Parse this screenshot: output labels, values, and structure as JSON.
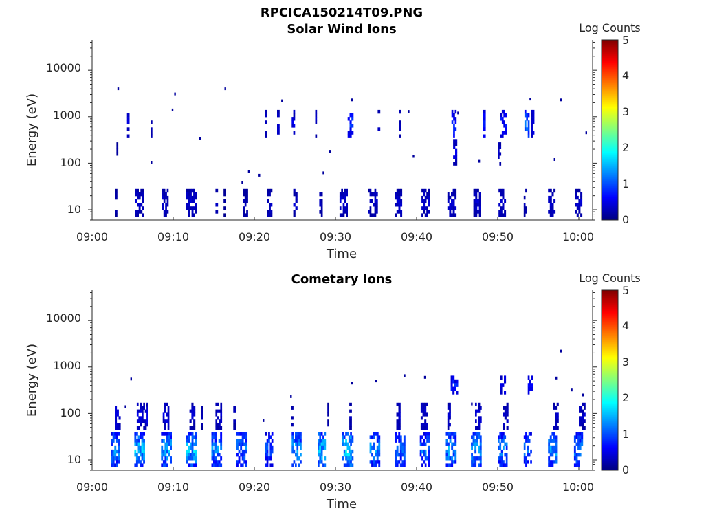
{
  "figure_title": "RPCICA150214T09.PNG",
  "colors": {
    "axis": "#262626",
    "background": "#ffffff"
  },
  "colormap": "jet",
  "chart_data": [
    {
      "type": "heatmap",
      "title": "Solar Wind Ions",
      "xlabel": "Time",
      "ylabel": "Energy (eV)",
      "x_ticks": [
        "09:00",
        "09:10",
        "09:20",
        "09:30",
        "09:40",
        "09:50",
        "10:00"
      ],
      "xlim_minutes": [
        0,
        61.5
      ],
      "y_scale": "log",
      "y_ticks": [
        "10",
        "100",
        "1000",
        "10000"
      ],
      "ylim": [
        6,
        45000
      ],
      "colorbar": {
        "label": "Log Counts",
        "ticks": [
          "0",
          "1",
          "2",
          "3",
          "4",
          "5"
        ],
        "range": [
          0,
          5
        ]
      },
      "bands": [
        {
          "e_lo": 7,
          "e_hi": 28,
          "runs": [
            [
              2.8,
              3.1,
              0.3
            ],
            [
              5.3,
              6.4,
              0.4
            ],
            [
              8.6,
              9.4,
              0.4
            ],
            [
              11.6,
              12.9,
              0.4
            ],
            [
              15.2,
              15.5,
              0.3
            ],
            [
              16.2,
              16.5,
              0.2
            ],
            [
              18.6,
              19.2,
              0.3
            ],
            [
              21.6,
              22.2,
              0.4
            ],
            [
              24.8,
              25.3,
              0.4
            ],
            [
              28.0,
              28.4,
              0.3
            ],
            [
              30.5,
              31.5,
              0.4
            ],
            [
              34.0,
              35.2,
              0.4
            ],
            [
              37.3,
              38.2,
              0.4
            ],
            [
              40.6,
              41.6,
              0.4
            ],
            [
              43.8,
              44.9,
              0.4
            ],
            [
              47.0,
              47.9,
              0.4
            ],
            [
              50.1,
              51.0,
              0.4
            ],
            [
              53.2,
              53.6,
              0.3
            ],
            [
              56.2,
              57.1,
              0.4
            ],
            [
              59.5,
              60.4,
              0.4
            ]
          ]
        },
        {
          "e_lo": 350,
          "e_hi": 1400,
          "runs": [
            [
              4.3,
              4.6,
              0.5
            ],
            [
              7.2,
              7.4,
              0.4
            ],
            [
              21.3,
              21.5,
              0.4
            ],
            [
              22.8,
              23.1,
              0.4
            ],
            [
              24.6,
              25.0,
              0.5
            ],
            [
              27.5,
              27.7,
              0.4
            ],
            [
              31.5,
              32.2,
              0.9
            ],
            [
              35.2,
              35.5,
              0.5
            ],
            [
              37.8,
              38.1,
              0.4
            ],
            [
              44.3,
              44.9,
              0.9
            ],
            [
              48.2,
              48.5,
              1.0
            ],
            [
              50.3,
              51.1,
              0.8
            ],
            [
              53.3,
              53.9,
              1.3
            ],
            [
              54.1,
              54.5,
              0.6
            ]
          ]
        },
        {
          "e_lo": 90,
          "e_hi": 330,
          "runs": [
            [
              44.5,
              45.0,
              0.6
            ],
            [
              50.0,
              50.4,
              0.4
            ],
            [
              3.0,
              3.2,
              0.2
            ]
          ]
        }
      ],
      "points": [
        [
          3.2,
          4000
        ],
        [
          10.2,
          3100
        ],
        [
          16.4,
          4000
        ],
        [
          23.4,
          2200
        ],
        [
          32.0,
          2300
        ],
        [
          39.0,
          1300
        ],
        [
          45.1,
          1200
        ],
        [
          54.0,
          2400
        ],
        [
          57.8,
          2300
        ],
        [
          13.3,
          340
        ],
        [
          29.3,
          180
        ],
        [
          39.6,
          140
        ],
        [
          47.7,
          110
        ],
        [
          57.0,
          120
        ],
        [
          7.3,
          105
        ],
        [
          9.9,
          1400
        ],
        [
          19.3,
          65
        ],
        [
          18.5,
          38
        ],
        [
          20.6,
          55
        ],
        [
          28.5,
          62
        ],
        [
          60.9,
          450
        ]
      ]
    },
    {
      "type": "heatmap",
      "title": "Cometary Ions",
      "xlabel": "Time",
      "ylabel": "Energy (eV)",
      "x_ticks": [
        "09:00",
        "09:10",
        "09:20",
        "09:30",
        "09:40",
        "09:50",
        "10:00"
      ],
      "xlim_minutes": [
        0,
        61.5
      ],
      "y_scale": "log",
      "y_ticks": [
        "10",
        "100",
        "1000",
        "10000"
      ],
      "ylim": [
        6,
        45000
      ],
      "colorbar": {
        "label": "Log Counts",
        "ticks": [
          "0",
          "1",
          "2",
          "3",
          "4",
          "5"
        ],
        "range": [
          0,
          5
        ]
      },
      "bands": [
        {
          "e_lo": 7,
          "e_hi": 40,
          "runs": [
            [
              2.3,
              3.4,
              1.4
            ],
            [
              5.2,
              6.5,
              1.6
            ],
            [
              8.5,
              9.8,
              1.5
            ],
            [
              11.6,
              12.9,
              1.7
            ],
            [
              14.7,
              16.0,
              1.4
            ],
            [
              17.8,
              19.1,
              1.3
            ],
            [
              21.3,
              22.3,
              1.1
            ],
            [
              24.6,
              25.8,
              1.5
            ],
            [
              27.8,
              28.8,
              1.7
            ],
            [
              30.8,
              32.2,
              1.9
            ],
            [
              34.2,
              35.5,
              1.4
            ],
            [
              37.3,
              38.6,
              1.2
            ],
            [
              40.4,
              41.6,
              1.2
            ],
            [
              43.6,
              44.9,
              1.5
            ],
            [
              46.7,
              48.0,
              1.6
            ],
            [
              50.0,
              51.2,
              1.3
            ],
            [
              53.2,
              54.2,
              1.2
            ],
            [
              56.2,
              57.3,
              1.5
            ],
            [
              59.4,
              60.5,
              1.3
            ]
          ]
        },
        {
          "e_lo": 45,
          "e_hi": 170,
          "runs": [
            [
              2.8,
              3.5,
              0.5
            ],
            [
              5.5,
              6.9,
              0.5
            ],
            [
              8.7,
              9.5,
              0.5
            ],
            [
              12.0,
              12.7,
              0.4
            ],
            [
              13.4,
              13.7,
              0.3
            ],
            [
              15.2,
              16.0,
              0.4
            ],
            [
              17.4,
              17.7,
              0.3
            ],
            [
              24.5,
              24.8,
              0.3
            ],
            [
              29.0,
              29.2,
              0.3
            ],
            [
              31.7,
              32.0,
              0.3
            ],
            [
              37.5,
              38.0,
              0.4
            ],
            [
              40.5,
              41.4,
              0.5
            ],
            [
              43.8,
              44.2,
              0.4
            ],
            [
              47.2,
              48.0,
              0.5
            ],
            [
              50.6,
              51.3,
              0.4
            ],
            [
              56.8,
              57.5,
              0.4
            ],
            [
              60.0,
              60.8,
              0.4
            ]
          ]
        },
        {
          "e_lo": 260,
          "e_hi": 650,
          "runs": [
            [
              44.2,
              45.1,
              0.8
            ],
            [
              50.3,
              51.0,
              0.7
            ],
            [
              53.7,
              54.3,
              0.7
            ]
          ]
        }
      ],
      "points": [
        [
          4.8,
          550
        ],
        [
          32.0,
          450
        ],
        [
          35.0,
          500
        ],
        [
          38.5,
          650
        ],
        [
          41.0,
          600
        ],
        [
          57.2,
          580
        ],
        [
          57.8,
          2200
        ],
        [
          60.5,
          250
        ],
        [
          24.5,
          230
        ],
        [
          46.8,
          160
        ],
        [
          59.1,
          320
        ],
        [
          21.1,
          70
        ],
        [
          4.1,
          140
        ],
        [
          6.7,
          150
        ]
      ]
    }
  ]
}
